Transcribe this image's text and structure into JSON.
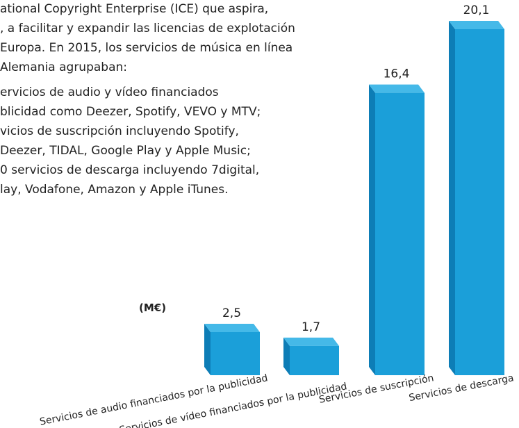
{
  "text_lines": [
    "ational Copyright Enterprise (ICE) que aspira,",
    ", a facilitar y expandir las licencias de explotación",
    "Europa. En 2015, los servicios de música en línea",
    " Alemania agrupaban:",
    "ervicios de audio y vídeo financiados",
    "blicidad como Deezer, Spotify, VEVO y MTV;",
    "vicios de suscripción incluyendo Spotify,",
    "Deezer, TIDAL, Google Play y Apple Music;",
    "0 servicios de descarga incluyendo 7digital,",
    "lay, Vodafone, Amazon y Apple iTunes."
  ],
  "chart_data": {
    "type": "bar",
    "unit_label": "(M€)",
    "color": "#1b9fd9",
    "categories": [
      "Servicios de audio financiados por la publicidad",
      "Servicios de vídeo financiados por la publicidad",
      "Servicios de suscripción",
      "Servicios de descarga"
    ],
    "values": [
      2.5,
      1.7,
      16.4,
      20.1
    ],
    "value_labels": [
      "2,5",
      "1,7",
      "16,4",
      "20,1"
    ]
  }
}
